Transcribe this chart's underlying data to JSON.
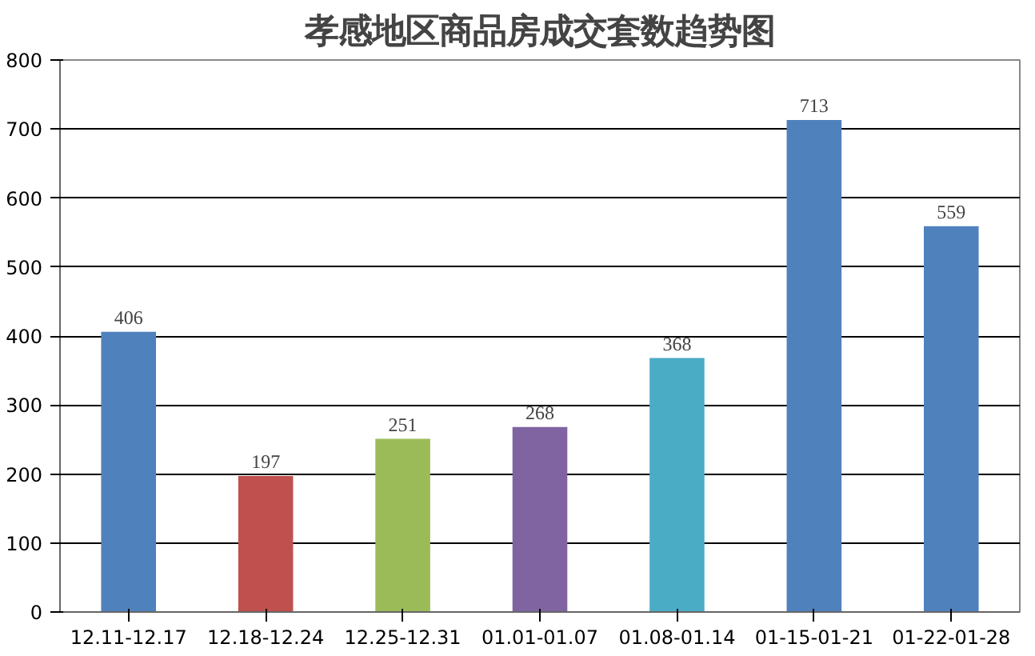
{
  "chart_data": {
    "type": "bar",
    "title": "孝感地区商品房成交套数趋势图",
    "categories": [
      "12.11-12.17",
      "12.18-12.24",
      "12.25-12.31",
      "01.01-01.07",
      "01.08-01.14",
      "01-15-01-21",
      "01-22-01-28"
    ],
    "values": [
      406,
      197,
      251,
      268,
      368,
      713,
      559
    ],
    "colors": [
      "#4f81bd",
      "#c0504d",
      "#9bbb59",
      "#8064a2",
      "#4bacc6",
      "#4f81bd",
      "#4f81bd"
    ],
    "ylim": [
      0,
      800
    ],
    "yticks": [
      0,
      100,
      200,
      300,
      400,
      500,
      600,
      700,
      800
    ],
    "grid": "y",
    "data_labels": true
  }
}
